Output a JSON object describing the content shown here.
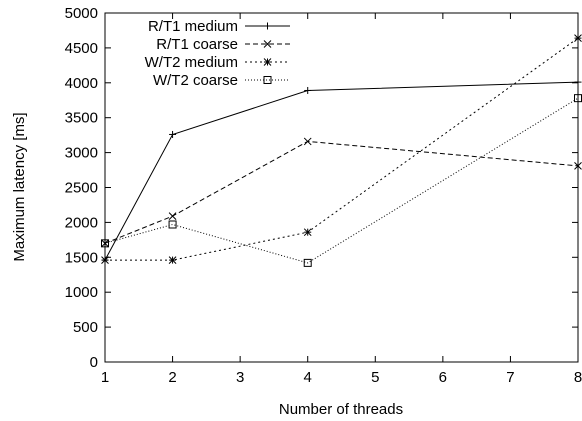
{
  "chart_data": {
    "type": "line",
    "title": "",
    "xlabel": "Number of threads",
    "ylabel": "Maximum latency [ms]",
    "xlim": [
      1,
      8
    ],
    "ylim": [
      0,
      5000
    ],
    "x_ticks": [
      "1",
      "2",
      "3",
      "4",
      "5",
      "6",
      "7",
      "8"
    ],
    "y_ticks": [
      "0",
      "500",
      "1000",
      "1500",
      "2000",
      "2500",
      "3000",
      "3500",
      "4000",
      "4500",
      "5000"
    ],
    "grid": false,
    "legend_position": "top-left",
    "series": [
      {
        "name": "R/T1 medium",
        "x": [
          1,
          2,
          4,
          8
        ],
        "y": [
          1460,
          3260,
          3890,
          4010
        ],
        "marker": "plus",
        "dash": "solid"
      },
      {
        "name": "R/T1 coarse",
        "x": [
          1,
          2,
          4,
          8
        ],
        "y": [
          1700,
          2090,
          3160,
          2810
        ],
        "marker": "cross",
        "dash": "dashed"
      },
      {
        "name": "W/T2 medium",
        "x": [
          1,
          2,
          4,
          8
        ],
        "y": [
          1460,
          1460,
          1860,
          4640
        ],
        "marker": "star",
        "dash": "dotted"
      },
      {
        "name": "W/T2 coarse",
        "x": [
          1,
          2,
          4,
          8
        ],
        "y": [
          1700,
          1970,
          1420,
          3780
        ],
        "marker": "square",
        "dash": "fine-dotted"
      }
    ]
  }
}
